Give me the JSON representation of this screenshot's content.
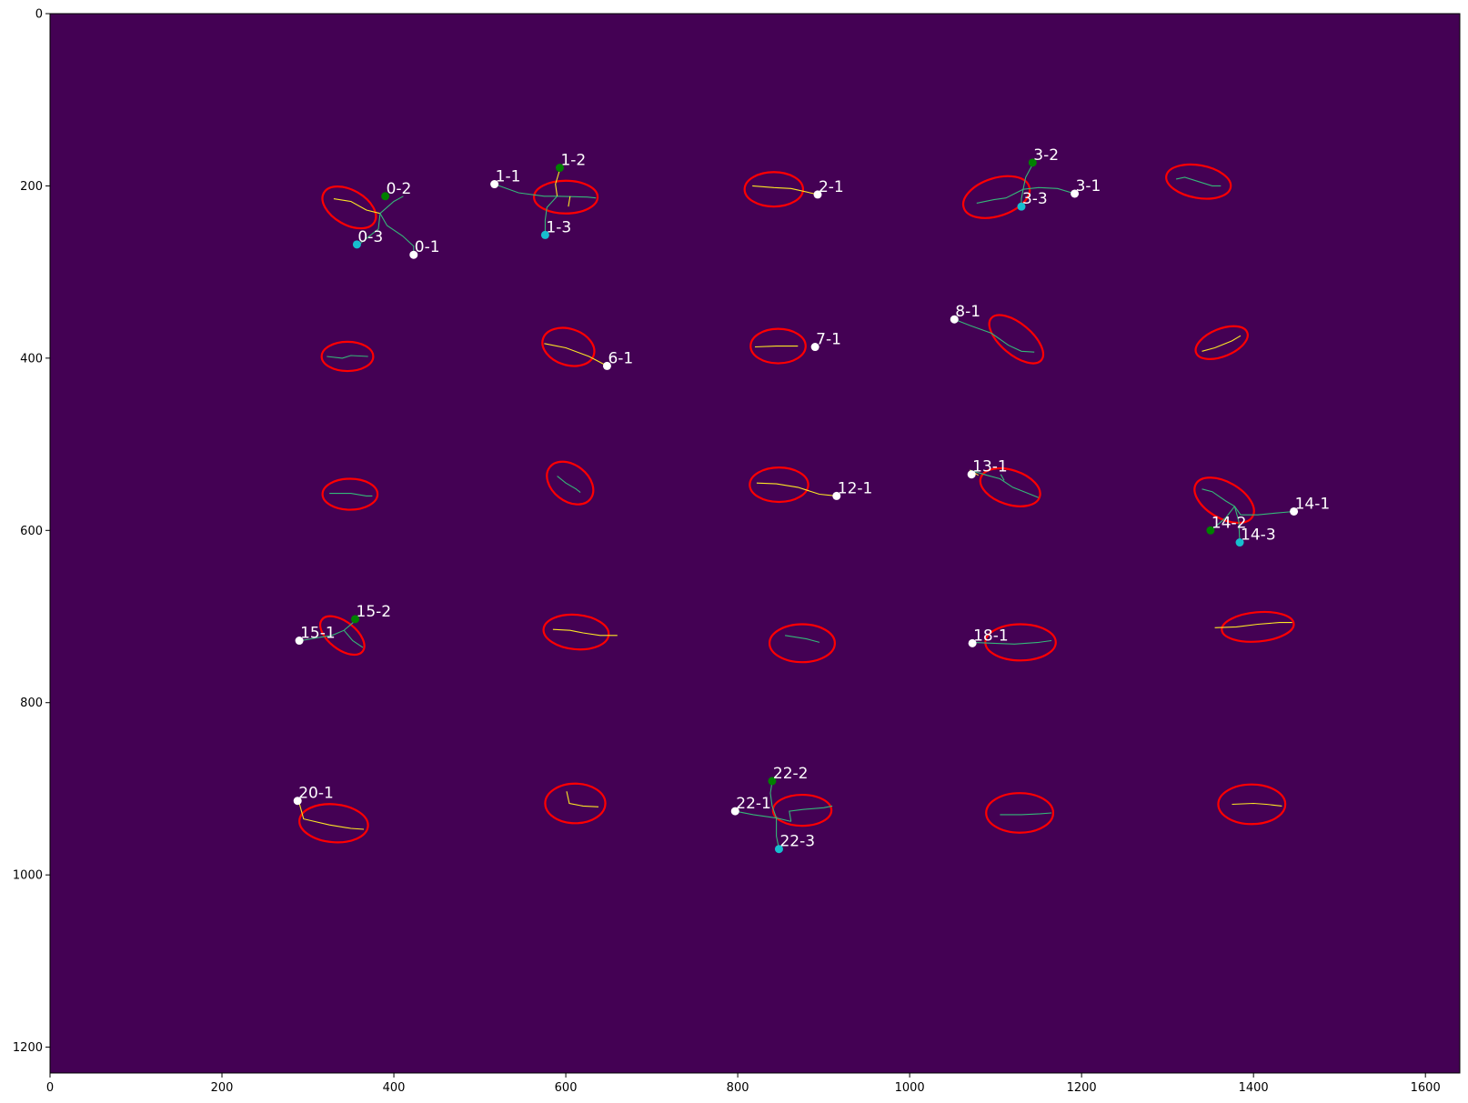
{
  "chart_data": {
    "type": "scatter",
    "title": "",
    "xlabel": "",
    "ylabel": "",
    "xlim": [
      0,
      1640
    ],
    "ylim": [
      1230,
      0
    ],
    "y_inverted": true,
    "grid": false,
    "legend": "none",
    "colors": {
      "background": "#440154",
      "outline": "#ff0000",
      "label_text": "#ffffff",
      "point_end": "#ffffff",
      "point_mid": "#008000",
      "point_tip": "#17becf",
      "trace_yellow": "#fde725",
      "trace_teal": "#35b779"
    },
    "x_ticks": [
      {
        "value": 0,
        "label": "0"
      },
      {
        "value": 200,
        "label": "200"
      },
      {
        "value": 400,
        "label": "400"
      },
      {
        "value": 600,
        "label": "600"
      },
      {
        "value": 800,
        "label": "800"
      },
      {
        "value": 1000,
        "label": "1000"
      },
      {
        "value": 1200,
        "label": "1200"
      },
      {
        "value": 1400,
        "label": "1400"
      },
      {
        "value": 1600,
        "label": "1600"
      }
    ],
    "y_ticks": [
      {
        "value": 0,
        "label": "0"
      },
      {
        "value": 200,
        "label": "200"
      },
      {
        "value": 400,
        "label": "400"
      },
      {
        "value": 600,
        "label": "600"
      },
      {
        "value": 800,
        "label": "800"
      },
      {
        "value": 1000,
        "label": "1000"
      },
      {
        "value": 1200,
        "label": "1200"
      }
    ],
    "outlines": [
      {
        "cx": 348,
        "cy": 225,
        "rx": 34,
        "ry": 20,
        "angle": 30
      },
      {
        "cx": 600,
        "cy": 213,
        "rx": 37,
        "ry": 19,
        "angle": 0
      },
      {
        "cx": 842,
        "cy": 204,
        "rx": 34,
        "ry": 20,
        "angle": 0
      },
      {
        "cx": 1101,
        "cy": 213,
        "rx": 40,
        "ry": 22,
        "angle": -18
      },
      {
        "cx": 1336,
        "cy": 195,
        "rx": 38,
        "ry": 19,
        "angle": 10
      },
      {
        "cx": 346,
        "cy": 398,
        "rx": 30,
        "ry": 17,
        "angle": 0
      },
      {
        "cx": 603,
        "cy": 387,
        "rx": 31,
        "ry": 21,
        "angle": 18
      },
      {
        "cx": 847,
        "cy": 386,
        "rx": 32,
        "ry": 20,
        "angle": 0
      },
      {
        "cx": 1124,
        "cy": 378,
        "rx": 38,
        "ry": 18,
        "angle": 40
      },
      {
        "cx": 1363,
        "cy": 382,
        "rx": 32,
        "ry": 16,
        "angle": -22
      },
      {
        "cx": 349,
        "cy": 558,
        "rx": 32,
        "ry": 18,
        "angle": 0
      },
      {
        "cx": 605,
        "cy": 545,
        "rx": 30,
        "ry": 21,
        "angle": 38
      },
      {
        "cx": 848,
        "cy": 547,
        "rx": 34,
        "ry": 20,
        "angle": 0
      },
      {
        "cx": 1117,
        "cy": 550,
        "rx": 36,
        "ry": 20,
        "angle": 18
      },
      {
        "cx": 1366,
        "cy": 565,
        "rx": 38,
        "ry": 21,
        "angle": 30
      },
      {
        "cx": 340,
        "cy": 722,
        "rx": 30,
        "ry": 16,
        "angle": 38
      },
      {
        "cx": 612,
        "cy": 718,
        "rx": 38,
        "ry": 20,
        "angle": 5
      },
      {
        "cx": 875,
        "cy": 731,
        "rx": 38,
        "ry": 22,
        "angle": 0
      },
      {
        "cx": 1129,
        "cy": 730,
        "rx": 41,
        "ry": 21,
        "angle": 0
      },
      {
        "cx": 1405,
        "cy": 712,
        "rx": 42,
        "ry": 17,
        "angle": -5
      },
      {
        "cx": 330,
        "cy": 940,
        "rx": 40,
        "ry": 22,
        "angle": 5
      },
      {
        "cx": 611,
        "cy": 917,
        "rx": 35,
        "ry": 23,
        "angle": 0
      },
      {
        "cx": 875,
        "cy": 925,
        "rx": 34,
        "ry": 18,
        "angle": 0
      },
      {
        "cx": 1128,
        "cy": 928,
        "rx": 39,
        "ry": 23,
        "angle": 0
      },
      {
        "cx": 1398,
        "cy": 918,
        "rx": 39,
        "ry": 23,
        "angle": 0
      }
    ],
    "traces": [
      {
        "color": "#fde725",
        "points": [
          [
            330,
            215
          ],
          [
            350,
            218
          ],
          [
            368,
            228
          ],
          [
            384,
            232
          ]
        ]
      },
      {
        "color": "#35b779",
        "points": [
          [
            384,
            232
          ],
          [
            400,
            218
          ],
          [
            411,
            212
          ]
        ]
      },
      {
        "color": "#35b779",
        "points": [
          [
            384,
            232
          ],
          [
            392,
            246
          ],
          [
            410,
            258
          ],
          [
            423,
            270
          ],
          [
            423,
            280
          ]
        ]
      },
      {
        "color": "#35b779",
        "points": [
          [
            384,
            232
          ],
          [
            382,
            250
          ],
          [
            357,
            270
          ]
        ]
      },
      {
        "color": "#35b779",
        "points": [
          [
            517,
            198
          ],
          [
            545,
            208
          ],
          [
            575,
            212
          ],
          [
            590,
            212
          ],
          [
            625,
            213
          ],
          [
            635,
            214
          ]
        ]
      },
      {
        "color": "#fde725",
        "points": [
          [
            590,
            212
          ],
          [
            588,
            198
          ],
          [
            593,
            181
          ]
        ]
      },
      {
        "color": "#35b779",
        "points": [
          [
            590,
            212
          ],
          [
            578,
            225
          ],
          [
            576,
            240
          ],
          [
            576,
            257
          ]
        ]
      },
      {
        "color": "#fde725",
        "points": [
          [
            605,
            212
          ],
          [
            603,
            224
          ]
        ]
      },
      {
        "color": "#fde725",
        "points": [
          [
            817,
            200
          ],
          [
            842,
            202
          ],
          [
            862,
            203
          ],
          [
            893,
            210
          ]
        ]
      },
      {
        "color": "#35b779",
        "points": [
          [
            1078,
            220
          ],
          [
            1098,
            216
          ],
          [
            1112,
            214
          ],
          [
            1132,
            204
          ],
          [
            1150,
            202
          ],
          [
            1172,
            203
          ],
          [
            1192,
            209
          ]
        ]
      },
      {
        "color": "#35b779",
        "points": [
          [
            1132,
            204
          ],
          [
            1135,
            190
          ],
          [
            1143,
            175
          ]
        ]
      },
      {
        "color": "#35b779",
        "points": [
          [
            1132,
            204
          ],
          [
            1130,
            215
          ],
          [
            1130,
            224
          ]
        ]
      },
      {
        "color": "#35b779",
        "points": [
          [
            1310,
            192
          ],
          [
            1320,
            190
          ],
          [
            1336,
            195
          ],
          [
            1352,
            200
          ],
          [
            1362,
            200
          ]
        ]
      },
      {
        "color": "#35b779",
        "points": [
          [
            322,
            398
          ],
          [
            340,
            400
          ],
          [
            350,
            397
          ],
          [
            370,
            398
          ]
        ]
      },
      {
        "color": "#fde725",
        "points": [
          [
            575,
            383
          ],
          [
            600,
            388
          ],
          [
            627,
            398
          ],
          [
            648,
            409
          ]
        ]
      },
      {
        "color": "#fde725",
        "points": [
          [
            820,
            387
          ],
          [
            845,
            386
          ],
          [
            870,
            386
          ]
        ]
      },
      {
        "color": "#35b779",
        "points": [
          [
            1052,
            355
          ],
          [
            1070,
            362
          ],
          [
            1095,
            371
          ],
          [
            1115,
            385
          ],
          [
            1130,
            392
          ],
          [
            1145,
            393
          ]
        ]
      },
      {
        "color": "#fde725",
        "points": [
          [
            1340,
            392
          ],
          [
            1355,
            388
          ],
          [
            1375,
            380
          ],
          [
            1385,
            374
          ]
        ]
      },
      {
        "color": "#35b779",
        "points": [
          [
            325,
            557
          ],
          [
            350,
            557
          ],
          [
            368,
            560
          ],
          [
            375,
            560
          ]
        ]
      },
      {
        "color": "#35b779",
        "points": [
          [
            590,
            537
          ],
          [
            600,
            545
          ],
          [
            612,
            552
          ],
          [
            617,
            556
          ]
        ]
      },
      {
        "color": "#fde725",
        "points": [
          [
            822,
            545
          ],
          [
            845,
            546
          ],
          [
            870,
            550
          ],
          [
            895,
            558
          ],
          [
            915,
            560
          ]
        ]
      },
      {
        "color": "#35b779",
        "points": [
          [
            1070,
            530
          ],
          [
            1090,
            536
          ],
          [
            1105,
            540
          ],
          [
            1120,
            550
          ],
          [
            1138,
            557
          ],
          [
            1150,
            562
          ]
        ]
      },
      {
        "color": "#fde725",
        "points": [
          [
            1070,
            530
          ],
          [
            1080,
            536
          ]
        ]
      },
      {
        "color": "#35b779",
        "points": [
          [
            1106,
            535
          ],
          [
            1110,
            542
          ]
        ]
      },
      {
        "color": "#35b779",
        "points": [
          [
            1340,
            552
          ],
          [
            1352,
            555
          ],
          [
            1368,
            566
          ],
          [
            1378,
            572
          ],
          [
            1385,
            582
          ],
          [
            1405,
            582
          ],
          [
            1425,
            580
          ],
          [
            1447,
            578
          ]
        ]
      },
      {
        "color": "#35b779",
        "points": [
          [
            1378,
            572
          ],
          [
            1368,
            585
          ],
          [
            1360,
            592
          ],
          [
            1350,
            600
          ]
        ]
      },
      {
        "color": "#35b779",
        "points": [
          [
            1378,
            572
          ],
          [
            1383,
            590
          ],
          [
            1384,
            614
          ]
        ]
      },
      {
        "color": "#35b779",
        "points": [
          [
            292,
            728
          ],
          [
            315,
            724
          ],
          [
            328,
            722
          ],
          [
            342,
            716
          ],
          [
            355,
            705
          ]
        ]
      },
      {
        "color": "#35b779",
        "points": [
          [
            342,
            716
          ],
          [
            352,
            728
          ],
          [
            364,
            736
          ]
        ]
      },
      {
        "color": "#fde725",
        "points": [
          [
            585,
            715
          ],
          [
            605,
            716
          ],
          [
            620,
            719
          ],
          [
            640,
            722
          ],
          [
            660,
            722
          ]
        ]
      },
      {
        "color": "#35b779",
        "points": [
          [
            855,
            722
          ],
          [
            880,
            726
          ],
          [
            895,
            730
          ]
        ]
      },
      {
        "color": "#35b779",
        "points": [
          [
            1073,
            730
          ],
          [
            1098,
            731
          ],
          [
            1122,
            732
          ],
          [
            1150,
            730
          ],
          [
            1165,
            728
          ]
        ]
      },
      {
        "color": "#fde725",
        "points": [
          [
            1355,
            713
          ],
          [
            1380,
            712
          ],
          [
            1405,
            709
          ],
          [
            1430,
            707
          ],
          [
            1445,
            707
          ]
        ]
      },
      {
        "color": "#fde725",
        "points": [
          [
            289,
            913
          ],
          [
            295,
            935
          ],
          [
            325,
            942
          ],
          [
            350,
            946
          ],
          [
            365,
            947
          ]
        ]
      },
      {
        "color": "#fde725",
        "points": [
          [
            601,
            903
          ],
          [
            604,
            917
          ],
          [
            620,
            920
          ],
          [
            638,
            921
          ]
        ]
      },
      {
        "color": "#35b779",
        "points": [
          [
            797,
            926
          ],
          [
            818,
            930
          ],
          [
            845,
            934
          ],
          [
            862,
            938
          ]
        ]
      },
      {
        "color": "#35b779",
        "points": [
          [
            862,
            938
          ],
          [
            860,
            926
          ],
          [
            876,
            924
          ],
          [
            900,
            922
          ],
          [
            910,
            920
          ]
        ]
      },
      {
        "color": "#35b779",
        "points": [
          [
            845,
            934
          ],
          [
            840,
            920
          ],
          [
            838,
            905
          ],
          [
            840,
            892
          ]
        ]
      },
      {
        "color": "#35b779",
        "points": [
          [
            845,
            934
          ],
          [
            845,
            955
          ],
          [
            848,
            970
          ]
        ]
      },
      {
        "color": "#35b779",
        "points": [
          [
            1105,
            930
          ],
          [
            1130,
            930
          ],
          [
            1152,
            929
          ],
          [
            1165,
            928
          ]
        ]
      },
      {
        "color": "#fde725",
        "points": [
          [
            1375,
            918
          ],
          [
            1400,
            917
          ],
          [
            1415,
            918
          ],
          [
            1433,
            920
          ]
        ]
      }
    ],
    "points": [
      {
        "label": "0-1",
        "x": 423,
        "y": 280,
        "kind": "end"
      },
      {
        "label": "0-2",
        "x": 390,
        "y": 212,
        "kind": "mid"
      },
      {
        "label": "0-3",
        "x": 357,
        "y": 268,
        "kind": "tip"
      },
      {
        "label": "1-1",
        "x": 517,
        "y": 198,
        "kind": "end"
      },
      {
        "label": "1-2",
        "x": 593,
        "y": 179,
        "kind": "mid"
      },
      {
        "label": "1-3",
        "x": 576,
        "y": 257,
        "kind": "tip"
      },
      {
        "label": "2-1",
        "x": 893,
        "y": 210,
        "kind": "end"
      },
      {
        "label": "3-1",
        "x": 1192,
        "y": 209,
        "kind": "end"
      },
      {
        "label": "3-2",
        "x": 1143,
        "y": 173,
        "kind": "mid"
      },
      {
        "label": "3-3",
        "x": 1130,
        "y": 224,
        "kind": "tip"
      },
      {
        "label": "6-1",
        "x": 648,
        "y": 409,
        "kind": "end"
      },
      {
        "label": "7-1",
        "x": 890,
        "y": 387,
        "kind": "end"
      },
      {
        "label": "8-1",
        "x": 1052,
        "y": 355,
        "kind": "end"
      },
      {
        "label": "12-1",
        "x": 915,
        "y": 560,
        "kind": "end"
      },
      {
        "label": "13-1",
        "x": 1072,
        "y": 535,
        "kind": "end"
      },
      {
        "label": "14-1",
        "x": 1447,
        "y": 578,
        "kind": "end"
      },
      {
        "label": "14-2",
        "x": 1350,
        "y": 600,
        "kind": "mid"
      },
      {
        "label": "14-3",
        "x": 1384,
        "y": 614,
        "kind": "tip"
      },
      {
        "label": "15-1",
        "x": 290,
        "y": 728,
        "kind": "end"
      },
      {
        "label": "15-2",
        "x": 355,
        "y": 703,
        "kind": "mid"
      },
      {
        "label": "18-1",
        "x": 1073,
        "y": 731,
        "kind": "end"
      },
      {
        "label": "20-1",
        "x": 288,
        "y": 914,
        "kind": "end"
      },
      {
        "label": "22-1",
        "x": 797,
        "y": 926,
        "kind": "end"
      },
      {
        "label": "22-2",
        "x": 840,
        "y": 891,
        "kind": "mid"
      },
      {
        "label": "22-3",
        "x": 848,
        "y": 970,
        "kind": "tip"
      }
    ]
  }
}
